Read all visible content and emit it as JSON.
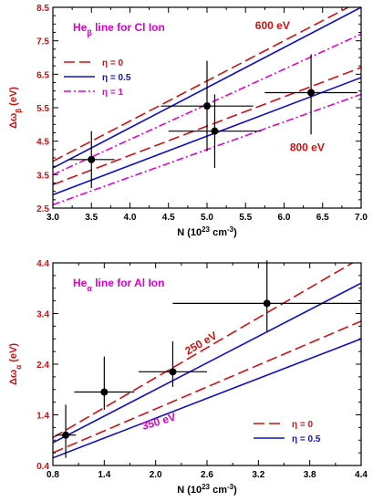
{
  "chart_data": [
    {
      "type": "line",
      "title": "He",
      "title_sub": "β",
      "title_rest": " line for Cl Ion",
      "title_color": "#e000d0",
      "xlabel": "N (10",
      "xlabel_sup": "23",
      "xlabel_mid": " cm",
      "xlabel_sup2": "-3",
      "xlabel_end": ")",
      "ylabel": "Δω",
      "ylabel_sub": "β",
      "ylabel_end": " (eV)",
      "xlim": [
        3.0,
        7.0
      ],
      "ylim": [
        2.5,
        8.5
      ],
      "xticks": [
        "3.0",
        "3.5",
        "4.0",
        "4.5",
        "5.0",
        "5.5",
        "6.0",
        "6.5",
        "7.0"
      ],
      "yticks": [
        "2.5",
        "3.5",
        "4.5",
        "5.5",
        "6.5",
        "7.5",
        "8.5"
      ],
      "grid": false,
      "legend_position": "top-left",
      "legend": [
        {
          "name": "η = 0",
          "color": "#d01010",
          "dash": "long-dash"
        },
        {
          "name": "η = 0.5",
          "color": "#1010c0",
          "dash": "solid"
        },
        {
          "name": "η = 1",
          "color": "#e000d0",
          "dash": "dash-dot"
        }
      ],
      "annotations": [
        {
          "text": "600 eV",
          "color": "#d01010",
          "x": 5.85,
          "y": 7.85
        },
        {
          "text": "800 eV",
          "color": "#d01010",
          "x": 6.3,
          "y": 4.2
        }
      ],
      "series": [
        {
          "color": "#d01010",
          "dash": "long-dash",
          "x": [
            3.0,
            7.0
          ],
          "y": [
            3.9,
            8.7
          ]
        },
        {
          "color": "#1010c0",
          "dash": "solid",
          "x": [
            3.0,
            7.0
          ],
          "y": [
            3.7,
            8.5
          ]
        },
        {
          "color": "#e000d0",
          "dash": "dash-dot",
          "x": [
            3.0,
            7.0
          ],
          "y": [
            3.5,
            7.7
          ]
        },
        {
          "color": "#d01010",
          "dash": "long-dash",
          "x": [
            3.0,
            7.0
          ],
          "y": [
            3.2,
            6.7
          ]
        },
        {
          "color": "#1010c0",
          "dash": "solid",
          "x": [
            3.0,
            7.0
          ],
          "y": [
            2.9,
            6.4
          ]
        },
        {
          "color": "#e000d0",
          "dash": "dash-dot",
          "x": [
            3.0,
            7.0
          ],
          "y": [
            2.6,
            5.9
          ]
        }
      ],
      "points": [
        {
          "x": 3.5,
          "y": 3.95,
          "xerr": 0.3,
          "yerr_low": 0.85,
          "yerr_high": 0.85
        },
        {
          "x": 5.0,
          "y": 5.55,
          "xerr": 0.6,
          "yerr_low": 1.35,
          "yerr_high": 1.35
        },
        {
          "x": 5.1,
          "y": 4.8,
          "xerr": 0.6,
          "yerr_low": 1.1,
          "yerr_high": 1.1
        },
        {
          "x": 6.35,
          "y": 5.95,
          "xerr": 0.6,
          "yerr_low": 1.25,
          "yerr_high": 1.15
        }
      ]
    },
    {
      "type": "line",
      "title": "He",
      "title_sub": "α",
      "title_rest": " line for Al Ion",
      "title_color": "#e000d0",
      "xlabel": "N (10",
      "xlabel_sup": "23",
      "xlabel_mid": " cm",
      "xlabel_sup2": "-3",
      "xlabel_end": ")",
      "ylabel": "Δω",
      "ylabel_sub": "α",
      "ylabel_end": " (eV)",
      "xlim": [
        0.8,
        4.4
      ],
      "ylim": [
        0.4,
        4.4
      ],
      "xticks": [
        "0.8",
        "1.4",
        "2.0",
        "2.6",
        "3.2",
        "3.8",
        "4.4"
      ],
      "yticks": [
        "0.4",
        "1.4",
        "2.4",
        "3.4",
        "4.4"
      ],
      "grid": false,
      "legend_position": "bottom-right",
      "legend": [
        {
          "name": "η = 0",
          "color": "#d01010",
          "dash": "long-dash"
        },
        {
          "name": "η = 0.5",
          "color": "#1010c0",
          "dash": "solid"
        }
      ],
      "annotations": [
        {
          "text": "250 eV",
          "color": "#d01010",
          "x": 2.55,
          "y": 2.75,
          "rotate": -30
        },
        {
          "text": "350 eV",
          "color": "#e000d0",
          "x": 2.05,
          "y": 1.2,
          "rotate": -17
        }
      ],
      "series": [
        {
          "color": "#d01010",
          "dash": "long-dash",
          "x": [
            0.8,
            4.4
          ],
          "y": [
            0.95,
            4.5
          ]
        },
        {
          "color": "#1010c0",
          "dash": "solid",
          "x": [
            0.8,
            4.4
          ],
          "y": [
            0.85,
            4.0
          ]
        },
        {
          "color": "#d01010",
          "dash": "long-dash",
          "x": [
            0.8,
            4.4
          ],
          "y": [
            0.65,
            3.25
          ]
        },
        {
          "color": "#1010c0",
          "dash": "solid",
          "x": [
            0.8,
            4.4
          ],
          "y": [
            0.55,
            2.9
          ]
        }
      ],
      "points": [
        {
          "x": 0.95,
          "y": 1.0,
          "xerr": 0.12,
          "yerr_low": 0.45,
          "yerr_high": 0.6
        },
        {
          "x": 1.4,
          "y": 1.85,
          "xerr": 0.35,
          "yerr_low": 0.35,
          "yerr_high": 0.7
        },
        {
          "x": 2.2,
          "y": 2.25,
          "xerr": 0.4,
          "yerr_low": 0.3,
          "yerr_high": 0.6
        },
        {
          "x": 3.3,
          "y": 3.6,
          "xerr": 1.1,
          "yerr_low": 0.55,
          "yerr_high": 0.85
        }
      ]
    }
  ]
}
